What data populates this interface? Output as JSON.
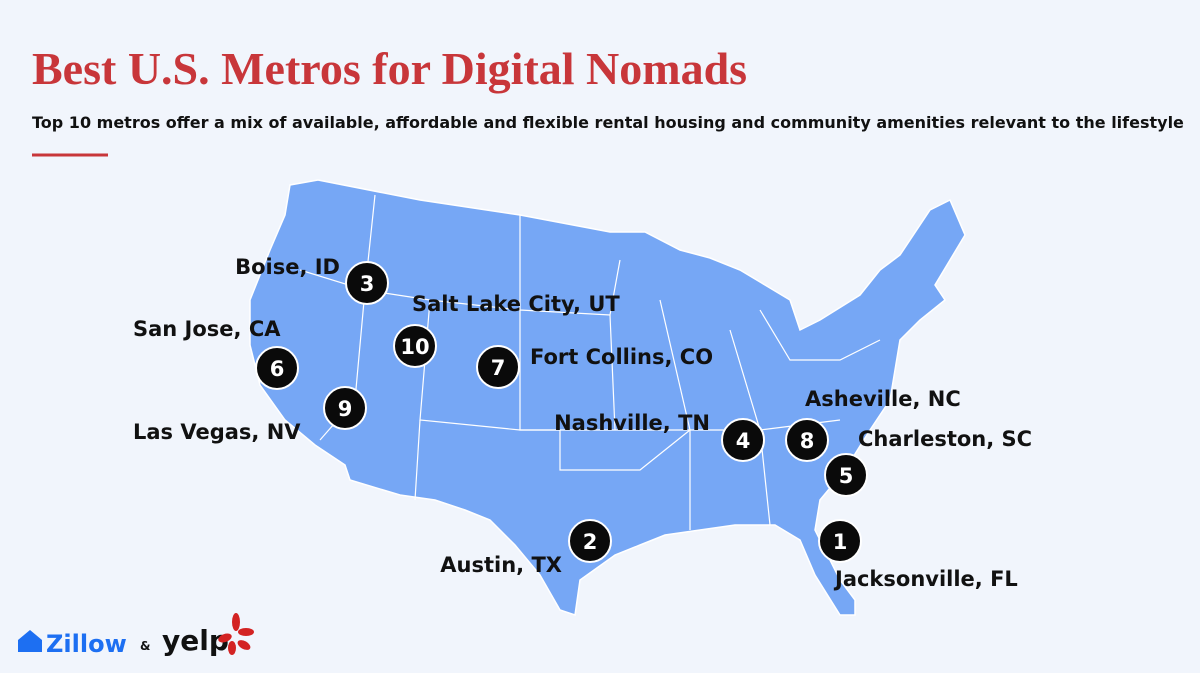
{
  "header": {
    "title": "Best U.S. Metros for Digital Nomads",
    "subtitle": "Top 10 metros offer a mix of available, affordable and flexible rental housing and community amenities relevant to the lifestyle"
  },
  "metros": [
    {
      "rank": 1,
      "label": "Jacksonville, FL"
    },
    {
      "rank": 2,
      "label": "Austin, TX"
    },
    {
      "rank": 3,
      "label": "Boise, ID"
    },
    {
      "rank": 4,
      "label": "Nashville, TN"
    },
    {
      "rank": 5,
      "label": "Charleston, SC"
    },
    {
      "rank": 6,
      "label": "San Jose, CA"
    },
    {
      "rank": 7,
      "label": "Fort Collins, CO"
    },
    {
      "rank": 8,
      "label": "Asheville, NC"
    },
    {
      "rank": 9,
      "label": "Las Vegas, NV"
    },
    {
      "rank": 10,
      "label": "Salt Lake City, UT"
    }
  ],
  "footer": {
    "zillow": "Zillow",
    "amp": "&",
    "yelp": "yelp"
  }
}
